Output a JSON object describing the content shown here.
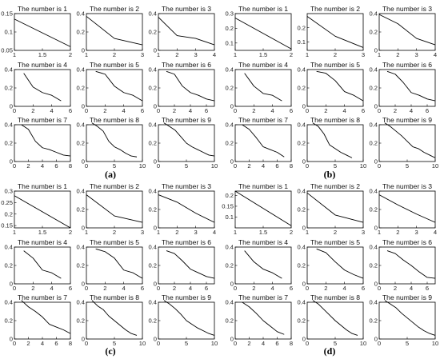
{
  "panel_labels": [
    "(a)",
    "(b)",
    "(c)",
    "(d)"
  ],
  "chart_data": [
    {
      "panel": "(a)",
      "title": "The number is 1",
      "type": "line",
      "x": [
        1,
        2
      ],
      "y": [
        0.135,
        0.06
      ],
      "xticks": [
        1,
        1.5,
        2
      ],
      "xlim": [
        1,
        2
      ],
      "yticks": [
        0.05,
        0.1,
        0.15
      ],
      "ylim": [
        0.05,
        0.15
      ]
    },
    {
      "panel": "(a)",
      "title": "The number is 2",
      "type": "line",
      "x": [
        1,
        2,
        3
      ],
      "y": [
        0.37,
        0.13,
        0.06
      ],
      "xticks": [
        1,
        2,
        3
      ],
      "xlim": [
        1,
        3
      ],
      "yticks": [
        0,
        0.2,
        0.4
      ],
      "ylim": [
        0,
        0.4
      ]
    },
    {
      "panel": "(a)",
      "title": "The number is 3",
      "type": "line",
      "x": [
        1,
        2,
        3,
        4
      ],
      "y": [
        0.36,
        0.16,
        0.13,
        0.06
      ],
      "xticks": [
        1,
        2,
        3,
        4
      ],
      "xlim": [
        1,
        4
      ],
      "yticks": [
        0,
        0.2,
        0.4
      ],
      "ylim": [
        0,
        0.4
      ]
    },
    {
      "panel": "(a)",
      "title": "The number is 4",
      "type": "line",
      "x": [
        1,
        2,
        3,
        4,
        5
      ],
      "y": [
        0.36,
        0.21,
        0.15,
        0.12,
        0.06
      ],
      "xticks": [
        0,
        2,
        4,
        6
      ],
      "xlim": [
        0,
        6
      ],
      "yticks": [
        0,
        0.2,
        0.4
      ],
      "ylim": [
        0,
        0.4
      ]
    },
    {
      "panel": "(a)",
      "title": "The number is 5",
      "type": "line",
      "x": [
        1,
        2,
        3,
        4,
        5,
        6
      ],
      "y": [
        0.38,
        0.35,
        0.22,
        0.15,
        0.12,
        0.06
      ],
      "xticks": [
        0,
        2,
        4,
        6
      ],
      "xlim": [
        0,
        6
      ],
      "yticks": [
        0,
        0.2,
        0.4
      ],
      "ylim": [
        0,
        0.4
      ]
    },
    {
      "panel": "(a)",
      "title": "The number is 6",
      "type": "line",
      "x": [
        1,
        2,
        3,
        4,
        5,
        6,
        7
      ],
      "y": [
        0.38,
        0.35,
        0.22,
        0.15,
        0.12,
        0.08,
        0.06
      ],
      "xticks": [
        0,
        2,
        4,
        6
      ],
      "xlim": [
        0,
        7
      ],
      "yticks": [
        0,
        0.2,
        0.4
      ],
      "ylim": [
        0,
        0.4
      ]
    },
    {
      "panel": "(a)",
      "title": "The number is 7",
      "type": "line",
      "x": [
        1,
        2,
        3,
        4,
        5,
        6,
        7,
        8
      ],
      "y": [
        0.4,
        0.35,
        0.22,
        0.15,
        0.13,
        0.1,
        0.07,
        0.06
      ],
      "xticks": [
        0,
        2,
        4,
        6,
        8
      ],
      "xlim": [
        0,
        8
      ],
      "yticks": [
        0,
        0.2,
        0.4
      ],
      "ylim": [
        0,
        0.4
      ]
    },
    {
      "panel": "(a)",
      "title": "The number is 8",
      "type": "line",
      "x": [
        1,
        2,
        3,
        4,
        5,
        6,
        7,
        8,
        9
      ],
      "y": [
        0.42,
        0.38,
        0.33,
        0.22,
        0.16,
        0.13,
        0.09,
        0.06,
        0.05
      ],
      "xticks": [
        0,
        5,
        10
      ],
      "xlim": [
        0,
        10
      ],
      "yticks": [
        0,
        0.2,
        0.4
      ],
      "ylim": [
        0,
        0.4
      ]
    },
    {
      "panel": "(a)",
      "title": "The number is 9",
      "type": "line",
      "x": [
        1,
        2,
        3,
        4,
        5,
        6,
        7,
        8,
        9,
        10
      ],
      "y": [
        0.42,
        0.38,
        0.34,
        0.27,
        0.2,
        0.16,
        0.13,
        0.1,
        0.07,
        0.06
      ],
      "xticks": [
        0,
        5,
        10
      ],
      "xlim": [
        0,
        10
      ],
      "yticks": [
        0,
        0.2,
        0.4
      ],
      "ylim": [
        0,
        0.4
      ]
    },
    {
      "panel": "(b)",
      "title": "The number is 1",
      "type": "line",
      "x": [
        1,
        2
      ],
      "y": [
        0.27,
        0.06
      ],
      "xticks": [
        1,
        1.5,
        2
      ],
      "xlim": [
        1,
        2
      ],
      "yticks": [
        0.1,
        0.2,
        0.3
      ],
      "ylim": [
        0.05,
        0.3
      ]
    },
    {
      "panel": "(b)",
      "title": "The number is 2",
      "type": "line",
      "x": [
        1,
        2,
        3
      ],
      "y": [
        0.28,
        0.14,
        0.06
      ],
      "xticks": [
        1,
        2,
        3
      ],
      "xlim": [
        1,
        3
      ],
      "yticks": [
        0.1,
        0.2
      ],
      "ylim": [
        0.04,
        0.3
      ]
    },
    {
      "panel": "(b)",
      "title": "The number is 3",
      "type": "line",
      "x": [
        1,
        2,
        3,
        4
      ],
      "y": [
        0.39,
        0.29,
        0.13,
        0.06
      ],
      "xticks": [
        1,
        2,
        3,
        4
      ],
      "xlim": [
        1,
        4
      ],
      "yticks": [
        0,
        0.2,
        0.4
      ],
      "ylim": [
        0,
        0.4
      ]
    },
    {
      "panel": "(b)",
      "title": "The number is 4",
      "type": "line",
      "x": [
        1,
        2,
        3,
        4,
        5
      ],
      "y": [
        0.36,
        0.22,
        0.14,
        0.12,
        0.06
      ],
      "xticks": [
        0,
        2,
        4,
        6
      ],
      "xlim": [
        0,
        6
      ],
      "yticks": [
        0,
        0.2,
        0.4
      ],
      "ylim": [
        0,
        0.4
      ]
    },
    {
      "panel": "(b)",
      "title": "The number is 5",
      "type": "line",
      "x": [
        1,
        2,
        3,
        4,
        5,
        6
      ],
      "y": [
        0.38,
        0.36,
        0.28,
        0.16,
        0.12,
        0.06
      ],
      "xticks": [
        0,
        2,
        4,
        6
      ],
      "xlim": [
        0,
        6
      ],
      "yticks": [
        0,
        0.2,
        0.4
      ],
      "ylim": [
        0,
        0.4
      ]
    },
    {
      "panel": "(b)",
      "title": "The number is 6",
      "type": "line",
      "x": [
        1,
        2,
        3,
        4,
        5,
        6,
        7
      ],
      "y": [
        0.38,
        0.35,
        0.26,
        0.15,
        0.12,
        0.08,
        0.06
      ],
      "xticks": [
        0,
        2,
        4,
        6
      ],
      "xlim": [
        0,
        7
      ],
      "yticks": [
        0,
        0.2,
        0.4
      ],
      "ylim": [
        0,
        0.4
      ]
    },
    {
      "panel": "(b)",
      "title": "The number is 7",
      "type": "line",
      "x": [
        1,
        2,
        3,
        4,
        5,
        6,
        7
      ],
      "y": [
        0.4,
        0.35,
        0.26,
        0.16,
        0.13,
        0.1,
        0.05
      ],
      "xticks": [
        0,
        2,
        4,
        6,
        8
      ],
      "xlim": [
        0,
        8
      ],
      "yticks": [
        0,
        0.2,
        0.4
      ],
      "ylim": [
        0,
        0.4
      ]
    },
    {
      "panel": "(b)",
      "title": "The number is 8",
      "type": "line",
      "x": [
        1,
        2,
        3,
        4,
        5,
        6,
        7,
        8
      ],
      "y": [
        0.42,
        0.38,
        0.3,
        0.18,
        0.14,
        0.1,
        0.07,
        0.04
      ],
      "xticks": [
        0,
        5,
        10
      ],
      "xlim": [
        0,
        10
      ],
      "yticks": [
        0,
        0.2,
        0.4
      ],
      "ylim": [
        0,
        0.4
      ]
    },
    {
      "panel": "(b)",
      "title": "The number is 9",
      "type": "line",
      "x": [
        1,
        2,
        3,
        4,
        5,
        6,
        7,
        8,
        9,
        10
      ],
      "y": [
        0.42,
        0.38,
        0.33,
        0.28,
        0.22,
        0.16,
        0.14,
        0.1,
        0.07,
        0.04
      ],
      "xticks": [
        0,
        5,
        10
      ],
      "xlim": [
        0,
        10
      ],
      "yticks": [
        0,
        0.2,
        0.4
      ],
      "ylim": [
        0,
        0.4
      ]
    },
    {
      "panel": "(c)",
      "title": "The number is 1",
      "type": "line",
      "x": [
        1,
        2
      ],
      "y": [
        0.28,
        0.14
      ],
      "xticks": [
        1,
        1.5,
        2
      ],
      "xlim": [
        1,
        2
      ],
      "yticks": [
        0.15,
        0.2,
        0.25,
        0.3
      ],
      "ylim": [
        0.14,
        0.3
      ]
    },
    {
      "panel": "(c)",
      "title": "The number is 2",
      "type": "line",
      "x": [
        1,
        2,
        3
      ],
      "y": [
        0.36,
        0.13,
        0.06
      ],
      "xticks": [
        1,
        2,
        3
      ],
      "xlim": [
        1,
        3
      ],
      "yticks": [
        0,
        0.2,
        0.4
      ],
      "ylim": [
        0,
        0.4
      ]
    },
    {
      "panel": "(c)",
      "title": "The number is 3",
      "type": "line",
      "x": [
        1,
        2,
        3,
        4
      ],
      "y": [
        0.36,
        0.28,
        0.16,
        0.06
      ],
      "xticks": [
        1,
        2,
        3,
        4
      ],
      "xlim": [
        1,
        4
      ],
      "yticks": [
        0,
        0.2,
        0.4
      ],
      "ylim": [
        0,
        0.4
      ]
    },
    {
      "panel": "(c)",
      "title": "The number is 4",
      "type": "line",
      "x": [
        1,
        2,
        3,
        4,
        5
      ],
      "y": [
        0.36,
        0.28,
        0.15,
        0.12,
        0.06
      ],
      "xticks": [
        0,
        2,
        4,
        6
      ],
      "xlim": [
        0,
        6
      ],
      "yticks": [
        0,
        0.2,
        0.4
      ],
      "ylim": [
        0,
        0.4
      ]
    },
    {
      "panel": "(c)",
      "title": "The number is 5",
      "type": "line",
      "x": [
        1,
        2,
        3,
        4,
        5,
        6
      ],
      "y": [
        0.38,
        0.35,
        0.28,
        0.15,
        0.12,
        0.06
      ],
      "xticks": [
        0,
        2,
        4,
        6
      ],
      "xlim": [
        0,
        6
      ],
      "yticks": [
        0,
        0.2,
        0.4
      ],
      "ylim": [
        0,
        0.4
      ]
    },
    {
      "panel": "(c)",
      "title": "The number is 6",
      "type": "line",
      "x": [
        1,
        2,
        3,
        4,
        5,
        6,
        7
      ],
      "y": [
        0.36,
        0.33,
        0.25,
        0.16,
        0.12,
        0.08,
        0.06
      ],
      "xticks": [
        0,
        2,
        4,
        6
      ],
      "xlim": [
        0,
        7
      ],
      "yticks": [
        0,
        0.2,
        0.4
      ],
      "ylim": [
        0,
        0.4
      ]
    },
    {
      "panel": "(c)",
      "title": "The number is 7",
      "type": "line",
      "x": [
        1,
        2,
        3,
        4,
        5,
        6,
        7,
        8
      ],
      "y": [
        0.42,
        0.35,
        0.3,
        0.24,
        0.16,
        0.13,
        0.1,
        0.06
      ],
      "xticks": [
        0,
        2,
        4,
        6,
        8
      ],
      "xlim": [
        0,
        8
      ],
      "yticks": [
        0,
        0.2,
        0.4
      ],
      "ylim": [
        0,
        0.4
      ]
    },
    {
      "panel": "(c)",
      "title": "The number is 8",
      "type": "line",
      "x": [
        1,
        2,
        3,
        4,
        5,
        6,
        7,
        8,
        9
      ],
      "y": [
        0.42,
        0.36,
        0.32,
        0.25,
        0.2,
        0.15,
        0.1,
        0.06,
        0.04
      ],
      "xticks": [
        0,
        5,
        10
      ],
      "xlim": [
        0,
        10
      ],
      "yticks": [
        0,
        0.2,
        0.4
      ],
      "ylim": [
        0,
        0.4
      ]
    },
    {
      "panel": "(c)",
      "title": "The number is 9",
      "type": "line",
      "x": [
        1,
        2,
        3,
        4,
        5,
        6,
        7,
        8,
        9,
        10
      ],
      "y": [
        0.42,
        0.38,
        0.33,
        0.27,
        0.2,
        0.16,
        0.12,
        0.09,
        0.06,
        0.04
      ],
      "xticks": [
        0,
        5,
        10
      ],
      "xlim": [
        0,
        10
      ],
      "yticks": [
        0,
        0.2,
        0.4
      ],
      "ylim": [
        0,
        0.4
      ]
    },
    {
      "panel": "(d)",
      "title": "The number is 1",
      "type": "line",
      "x": [
        1,
        2
      ],
      "y": [
        0.22,
        0.06
      ],
      "xticks": [
        1,
        1.5,
        2
      ],
      "xlim": [
        1,
        2
      ],
      "yticks": [
        0.1,
        0.15,
        0.2
      ],
      "ylim": [
        0.05,
        0.22
      ]
    },
    {
      "panel": "(d)",
      "title": "The number is 2",
      "type": "line",
      "x": [
        1,
        2,
        3
      ],
      "y": [
        0.38,
        0.14,
        0.06
      ],
      "xticks": [
        1,
        2,
        3
      ],
      "xlim": [
        1,
        3
      ],
      "yticks": [
        0,
        0.2,
        0.4
      ],
      "ylim": [
        0,
        0.4
      ]
    },
    {
      "panel": "(d)",
      "title": "The number is 3",
      "type": "line",
      "x": [
        1,
        2,
        3,
        4
      ],
      "y": [
        0.36,
        0.25,
        0.15,
        0.06
      ],
      "xticks": [
        1,
        2,
        3,
        4
      ],
      "xlim": [
        1,
        4
      ],
      "yticks": [
        0,
        0.2,
        0.4
      ],
      "ylim": [
        0,
        0.4
      ]
    },
    {
      "panel": "(d)",
      "title": "The number is 4",
      "type": "line",
      "x": [
        1,
        2,
        3,
        4,
        5
      ],
      "y": [
        0.36,
        0.24,
        0.16,
        0.12,
        0.06
      ],
      "xticks": [
        0,
        2,
        4,
        6
      ],
      "xlim": [
        0,
        6
      ],
      "yticks": [
        0,
        0.2,
        0.4
      ],
      "ylim": [
        0,
        0.4
      ]
    },
    {
      "panel": "(d)",
      "title": "The number is 5",
      "type": "line",
      "x": [
        1,
        2,
        3,
        4,
        5,
        6
      ],
      "y": [
        0.38,
        0.34,
        0.24,
        0.15,
        0.1,
        0.06
      ],
      "xticks": [
        0,
        2,
        4,
        6
      ],
      "xlim": [
        0,
        6
      ],
      "yticks": [
        0,
        0.2,
        0.4
      ],
      "ylim": [
        0,
        0.4
      ]
    },
    {
      "panel": "(d)",
      "title": "The number is 6",
      "type": "line",
      "x": [
        1,
        2,
        3,
        4,
        5,
        6,
        7
      ],
      "y": [
        0.36,
        0.33,
        0.26,
        0.2,
        0.13,
        0.07,
        0.06
      ],
      "xticks": [
        0,
        2,
        4,
        6
      ],
      "xlim": [
        0,
        7
      ],
      "yticks": [
        0,
        0.2,
        0.4
      ],
      "ylim": [
        0,
        0.4
      ]
    },
    {
      "panel": "(d)",
      "title": "The number is 7",
      "type": "line",
      "x": [
        1,
        2,
        3,
        4,
        5,
        6,
        7
      ],
      "y": [
        0.4,
        0.35,
        0.28,
        0.2,
        0.14,
        0.08,
        0.05
      ],
      "xticks": [
        0,
        2,
        4,
        6,
        8
      ],
      "xlim": [
        0,
        8
      ],
      "yticks": [
        0,
        0.2,
        0.4
      ],
      "ylim": [
        0,
        0.4
      ]
    },
    {
      "panel": "(d)",
      "title": "The number is 8",
      "type": "line",
      "x": [
        1,
        2,
        3,
        4,
        5,
        6,
        7,
        8,
        9
      ],
      "y": [
        0.42,
        0.38,
        0.32,
        0.26,
        0.2,
        0.15,
        0.1,
        0.06,
        0.04
      ],
      "xticks": [
        0,
        5,
        10
      ],
      "xlim": [
        0,
        10
      ],
      "yticks": [
        0,
        0.2,
        0.4
      ],
      "ylim": [
        0,
        0.4
      ]
    },
    {
      "panel": "(d)",
      "title": "The number is 9",
      "type": "line",
      "x": [
        1,
        2,
        3,
        4,
        5,
        6,
        7,
        8,
        9,
        10
      ],
      "y": [
        0.42,
        0.38,
        0.34,
        0.28,
        0.23,
        0.18,
        0.13,
        0.09,
        0.06,
        0.04
      ],
      "xticks": [
        0,
        5,
        10
      ],
      "xlim": [
        0,
        10
      ],
      "yticks": [
        0,
        0.2,
        0.4
      ],
      "ylim": [
        0,
        0.4
      ]
    }
  ]
}
